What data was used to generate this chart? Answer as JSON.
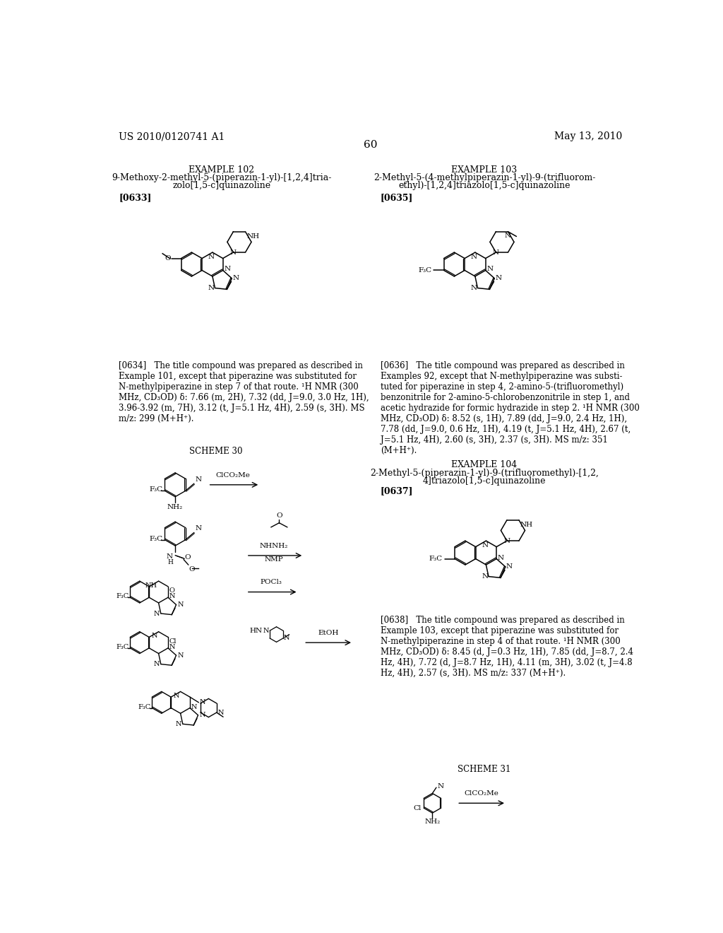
{
  "background_color": "#ffffff",
  "header_left": "US 2010/0120741 A1",
  "header_right": "May 13, 2010",
  "page_number": "60",
  "example102_title": "EXAMPLE 102",
  "example102_line1": "9-Methoxy-2-methyl-5-(piperazin-1-yl)-[1,2,4]tria-",
  "example102_line2": "zolo[1,5-c]quinazoline",
  "example102_tag": "[0633]",
  "example102_text": "[0634]   The title compound was prepared as described in\nExample 101, except that piperazine was substituted for\nN-methylpiperazine in step 7 of that route. ¹H NMR (300\nMHz, CD₃OD) δ: 7.66 (m, 2H), 7.32 (dd, J=9.0, 3.0 Hz, 1H),\n3.96-3.92 (m, 7H), 3.12 (t, J=5.1 Hz, 4H), 2.59 (s, 3H). MS\nm/z: 299 (M+H⁺).",
  "example103_title": "EXAMPLE 103",
  "example103_line1": "2-Methyl-5-(4-methylpiperazin-1-yl)-9-(trifluorom-",
  "example103_line2": "ethyl)-[1,2,4]triazolo[1,5-c]quinazoline",
  "example103_tag": "[0635]",
  "example103_text": "[0636]   The title compound was prepared as described in\nExamples 92, except that N-methylpiperazine was substi-\ntuted for piperazine in step 4, 2-amino-5-(trifluoromethyl)\nbenzonitrile for 2-amino-5-chlorobenzonitrile in step 1, and\nacetic hydrazide for formic hydrazide in step 2. ¹H NMR (300\nMHz, CD₃OD) δ: 8.52 (s, 1H), 7.89 (dd, J=9.0, 2.4 Hz, 1H),\n7.78 (dd, J=9.0, 0.6 Hz, 1H), 4.19 (t, J=5.1 Hz, 4H), 2.67 (t,\nJ=5.1 Hz, 4H), 2.60 (s, 3H), 2.37 (s, 3H). MS m/z: 351\n(M+H⁺).",
  "scheme30_label": "SCHEME 30",
  "example104_title": "EXAMPLE 104",
  "example104_line1": "2-Methyl-5-(piperazin-1-yl)-9-(trifluoromethyl)-[1,2,",
  "example104_line2": "4]triazolo[1,5-c]quinazoline",
  "example104_tag": "[0637]",
  "example104_text": "[0638]   The title compound was prepared as described in\nExample 103, except that piperazine was substituted for\nN-methylpiperazine in step 4 of that route. ¹H NMR (300\nMHz, CD₃OD) δ: 8.45 (d, J=0.3 Hz, 1H), 7.85 (dd, J=8.7, 2.4\nHz, 4H), 7.72 (d, J=8.7 Hz, 1H), 4.11 (m, 3H), 3.02 (t, J=4.8\nHz, 4H), 2.57 (s, 3H). MS m/z: 337 (M+H⁺).",
  "scheme31_label": "SCHEME 31"
}
